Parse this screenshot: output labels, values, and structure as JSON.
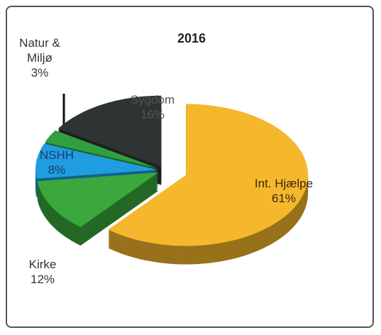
{
  "chart_data": {
    "type": "pie",
    "title": "2016",
    "categories": [
      "Int. Hjælpe",
      "Kirke",
      "NSHH",
      "Natur & Miljø",
      "Sygdom"
    ],
    "values": [
      61,
      12,
      8,
      3,
      16
    ],
    "value_labels": [
      "61%",
      "12%",
      "8%",
      "3%",
      "16%"
    ],
    "colors": [
      "#f5b72c",
      "#3aa83c",
      "#1f9de0",
      "#2f9f40",
      "#2e3434"
    ]
  }
}
